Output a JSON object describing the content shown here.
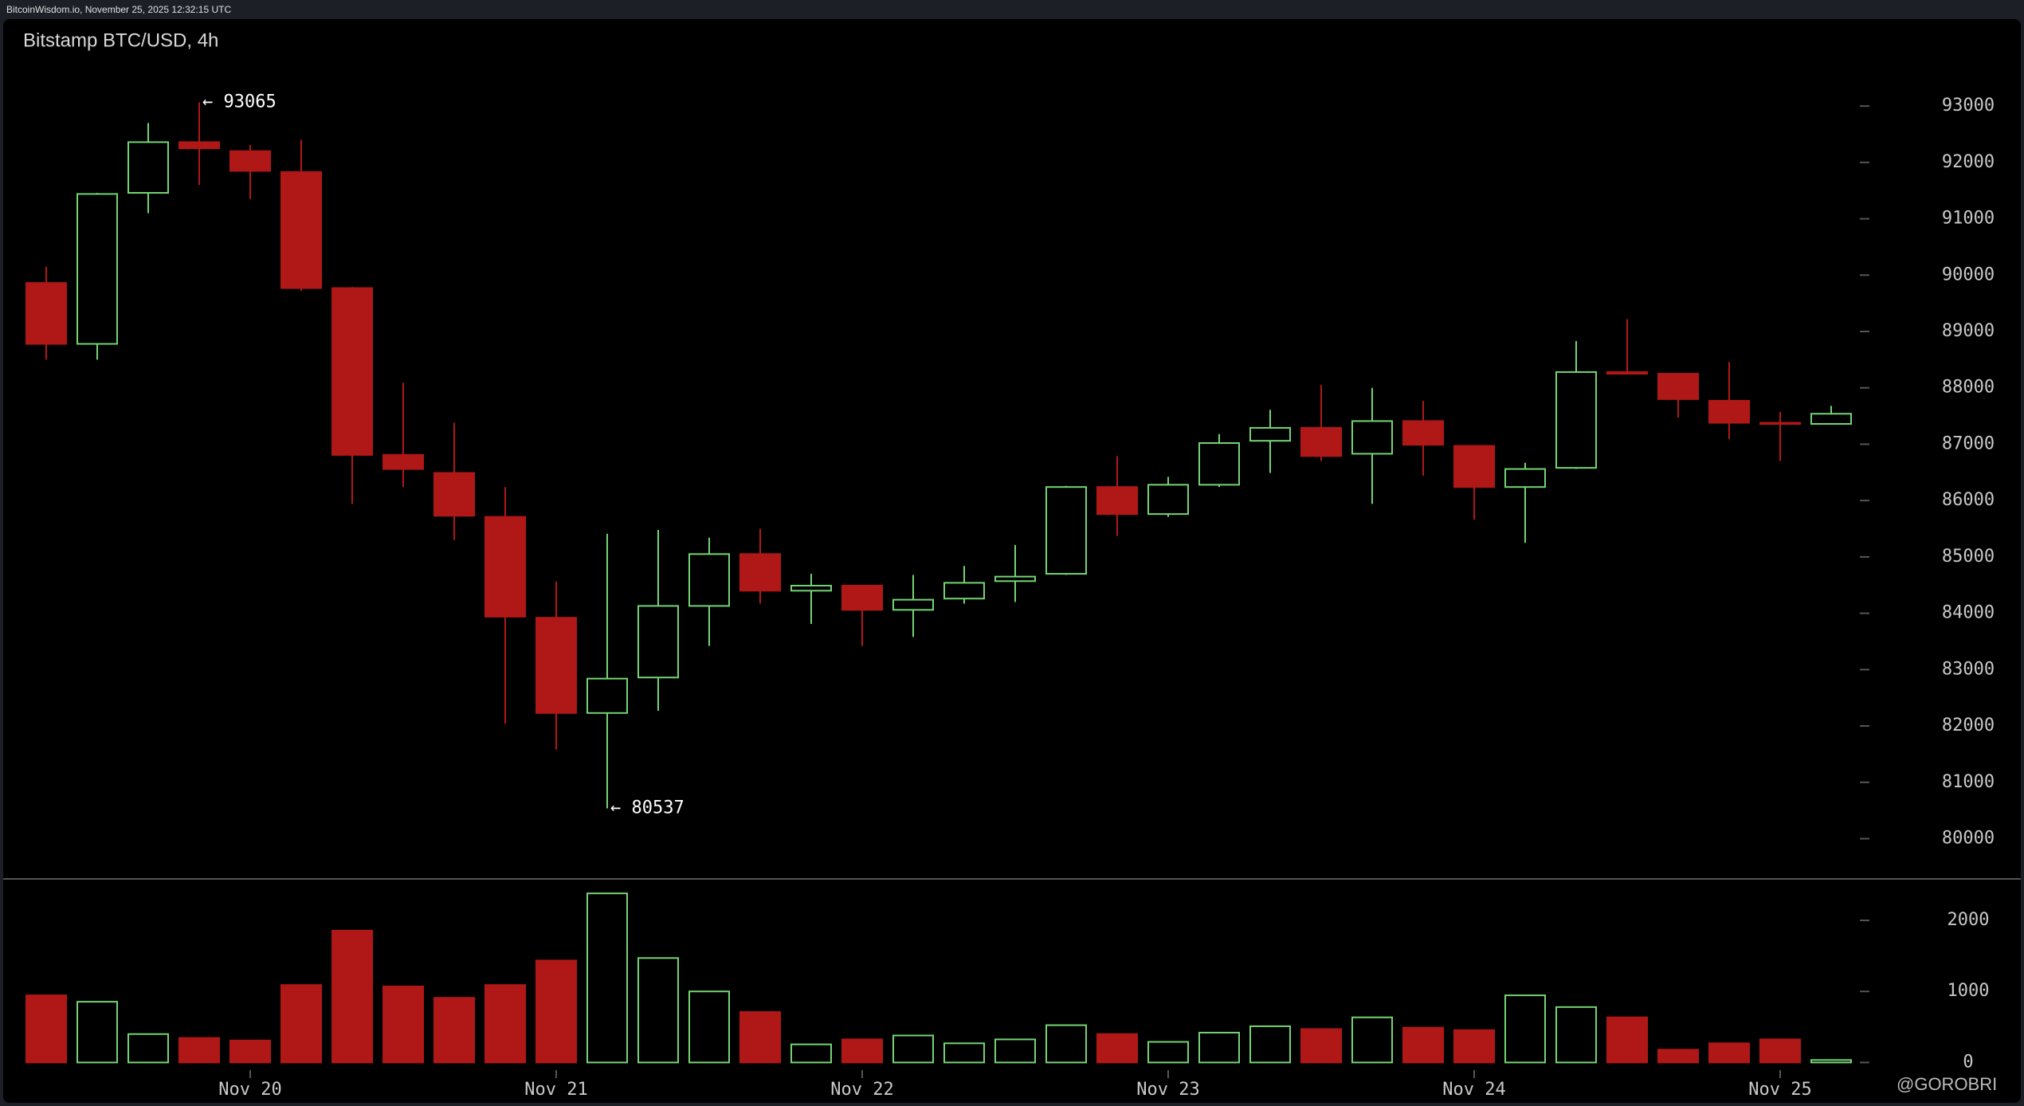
{
  "source": "BitcoinWisdom.io, November 25, 2025 12:32:15 UTC",
  "watermark": "@GOROBRI",
  "chart_data": [
    {
      "type": "candlestick",
      "title": "Bitstamp BTC/USD, 4h",
      "categories": [
        null,
        null,
        null,
        null,
        "Nov 20",
        null,
        null,
        null,
        null,
        null,
        "Nov 21",
        null,
        null,
        null,
        null,
        null,
        "Nov 22",
        null,
        null,
        null,
        null,
        null,
        "Nov 23",
        null,
        null,
        null,
        null,
        null,
        "Nov 24",
        null,
        null,
        null,
        null,
        null,
        "Nov 25",
        null
      ],
      "open": [
        89860,
        88780,
        91460,
        92360,
        92200,
        91830,
        89770,
        86810,
        86490,
        85710,
        83920,
        82230,
        82860,
        84130,
        85050,
        84400,
        84490,
        84060,
        84260,
        84570,
        84700,
        86240,
        85760,
        86280,
        87060,
        87290,
        86830,
        87410,
        86970,
        86240,
        86580,
        88280,
        88250,
        87770,
        87380,
        87360
      ],
      "high": [
        90150,
        91460,
        92700,
        93065,
        92310,
        92400,
        89790,
        88090,
        87380,
        86240,
        84560,
        85410,
        85480,
        85340,
        85500,
        84700,
        84490,
        84680,
        84840,
        85210,
        86260,
        86790,
        86420,
        87180,
        87610,
        88050,
        88000,
        87770,
        86970,
        86670,
        88830,
        89220,
        88250,
        88460,
        87570,
        87680
      ],
      "low": [
        88500,
        88500,
        91100,
        91600,
        91350,
        89720,
        85940,
        86240,
        85300,
        82040,
        81580,
        80537,
        82270,
        83420,
        84170,
        83810,
        83420,
        83580,
        84170,
        84200,
        84680,
        85370,
        85710,
        86240,
        86490,
        86700,
        85940,
        86440,
        85660,
        85250,
        86560,
        88250,
        87470,
        87090,
        86700,
        87360
      ],
      "close": [
        88780,
        91440,
        92360,
        92250,
        91850,
        89770,
        86810,
        86560,
        85730,
        83940,
        82230,
        82840,
        84130,
        85050,
        84400,
        84490,
        84060,
        84240,
        84540,
        84650,
        86240,
        85760,
        86280,
        87020,
        87290,
        86790,
        87410,
        86990,
        86240,
        86560,
        88280,
        88250,
        87800,
        87380,
        87360,
        87540
      ],
      "annotations": [
        "← 93065",
        "← 80537"
      ],
      "up_color": "#74d474",
      "down_color": "#b01818",
      "ylim": [
        79300,
        93850
      ],
      "yticks": [
        80000,
        81000,
        82000,
        83000,
        84000,
        85000,
        86000,
        87000,
        88000,
        89000,
        90000,
        91000,
        92000,
        93000
      ]
    },
    {
      "type": "bar",
      "values": [
        945,
        855,
        400,
        345,
        310,
        1090,
        1855,
        1070,
        910,
        1090,
        1435,
        2380,
        1470,
        1000,
        710,
        255,
        325,
        380,
        270,
        325,
        525,
        400,
        290,
        420,
        510,
        470,
        635,
        490,
        455,
        945,
        780,
        635,
        180,
        270,
        325,
        35
      ],
      "ylim": [
        -220,
        2550
      ],
      "yticks": [
        0,
        1000,
        2000
      ]
    }
  ]
}
